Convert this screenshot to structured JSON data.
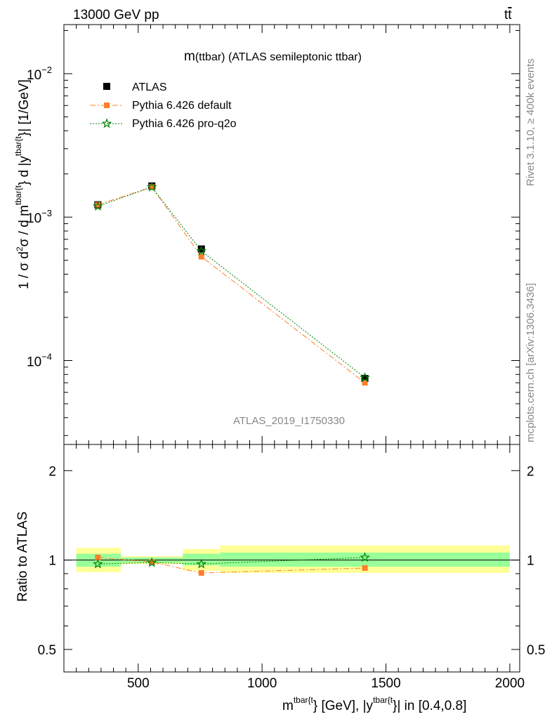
{
  "header": {
    "left": "13000 GeV pp",
    "right_main": "t",
    "right_bar": "t"
  },
  "side": {
    "rivet": "Rivet 3.1.10, ≥ 400k events",
    "mcplots": "mcplots.cern.ch [arXiv:1306.3436]"
  },
  "main_title": {
    "m": "m",
    "rest": "(ttbar) (ATLAS semileptonic ttbar)"
  },
  "watermark": "ATLAS_2019_I1750330",
  "ylabel_main": {
    "pre": "1 / σ d",
    "sup2": "2",
    "mid": "σ / d m",
    "sup_m": "tbar{t",
    "mid2": "} d |y",
    "sup_y": "tbar{t",
    "post": "}| [1/GeV]"
  },
  "ylabel_ratio": "Ratio to ATLAS",
  "xlabel": {
    "m": "m",
    "sup1": "tbar{t",
    "mid": "} [GeV], |y",
    "sup2": "tbar{t",
    "post": "}| in [0.4,0.8]"
  },
  "legend": [
    {
      "label": "ATLAS",
      "color": "#000000"
    },
    {
      "label": "Pythia 6.426 default",
      "color": "#ff7f2a"
    },
    {
      "label": "Pythia 6.426 pro-q2o",
      "color": "#008000"
    }
  ],
  "colors": {
    "atlas": "#000000",
    "default": "#ff7f2a",
    "proq2o": "#008000",
    "band_outer": "#ffff99",
    "band_inner": "#99ff99",
    "side_text": "#888888"
  },
  "chart_data": [
    {
      "type": "scatter",
      "panel": "main",
      "yscale": "log",
      "xlim": [
        200,
        2040
      ],
      "ylim": [
        2.6e-05,
        0.022
      ],
      "x_ticks": [
        500,
        1000,
        1500,
        2000
      ],
      "x_tick_labels": [
        "500",
        "1000",
        "1500",
        "2000"
      ],
      "y_major_ticks": [
        0.0001,
        0.001,
        0.01
      ],
      "y_tick_labels": [
        {
          "base": "10",
          "exp": "−4"
        },
        {
          "base": "10",
          "exp": "−3"
        },
        {
          "base": "10",
          "exp": "−2"
        }
      ],
      "series": [
        {
          "name": "ATLAS",
          "x": [
            337,
            555,
            755,
            1415
          ],
          "y": [
            0.00122,
            0.00165,
            0.0006,
            7.5e-05
          ],
          "xerr": [
            [
              250,
              430
            ],
            [
              430,
              680
            ],
            [
              680,
              830
            ],
            [
              830,
              2000
            ]
          ]
        },
        {
          "name": "Pythia 6.426 default",
          "x": [
            337,
            555,
            755,
            1415
          ],
          "y": [
            0.00122,
            0.00162,
            0.00053,
            7e-05
          ]
        },
        {
          "name": "Pythia 6.426 pro-q2o",
          "x": [
            337,
            555,
            755,
            1415
          ],
          "y": [
            0.00119,
            0.00162,
            0.00058,
            7.6e-05
          ]
        }
      ]
    },
    {
      "type": "scatter",
      "panel": "ratio",
      "yscale": "log",
      "xlim": [
        200,
        2040
      ],
      "ylim": [
        0.42,
        2.45
      ],
      "y_ticks": [
        0.5,
        1,
        2
      ],
      "y_tick_labels": [
        "0.5",
        "1",
        "2"
      ],
      "bands": [
        {
          "x": [
            250,
            430
          ],
          "outer": [
            0.91,
            1.1
          ],
          "inner": [
            0.95,
            1.05
          ]
        },
        {
          "x": [
            430,
            680
          ],
          "outer": [
            0.97,
            1.03
          ],
          "inner": [
            0.98,
            1.02
          ]
        },
        {
          "x": [
            680,
            830
          ],
          "outer": [
            0.92,
            1.09
          ],
          "inner": [
            0.96,
            1.05
          ]
        },
        {
          "x": [
            830,
            2000
          ],
          "outer": [
            0.905,
            1.12
          ],
          "inner": [
            0.95,
            1.06
          ]
        }
      ],
      "series": [
        {
          "name": "Pythia 6.426 default",
          "x": [
            337,
            555,
            755,
            1415
          ],
          "y": [
            1.02,
            0.985,
            0.905,
            0.94
          ]
        },
        {
          "name": "Pythia 6.426 pro-q2o",
          "x": [
            337,
            555,
            755,
            1415
          ],
          "y": [
            0.97,
            0.98,
            0.97,
            1.02
          ]
        }
      ]
    }
  ]
}
